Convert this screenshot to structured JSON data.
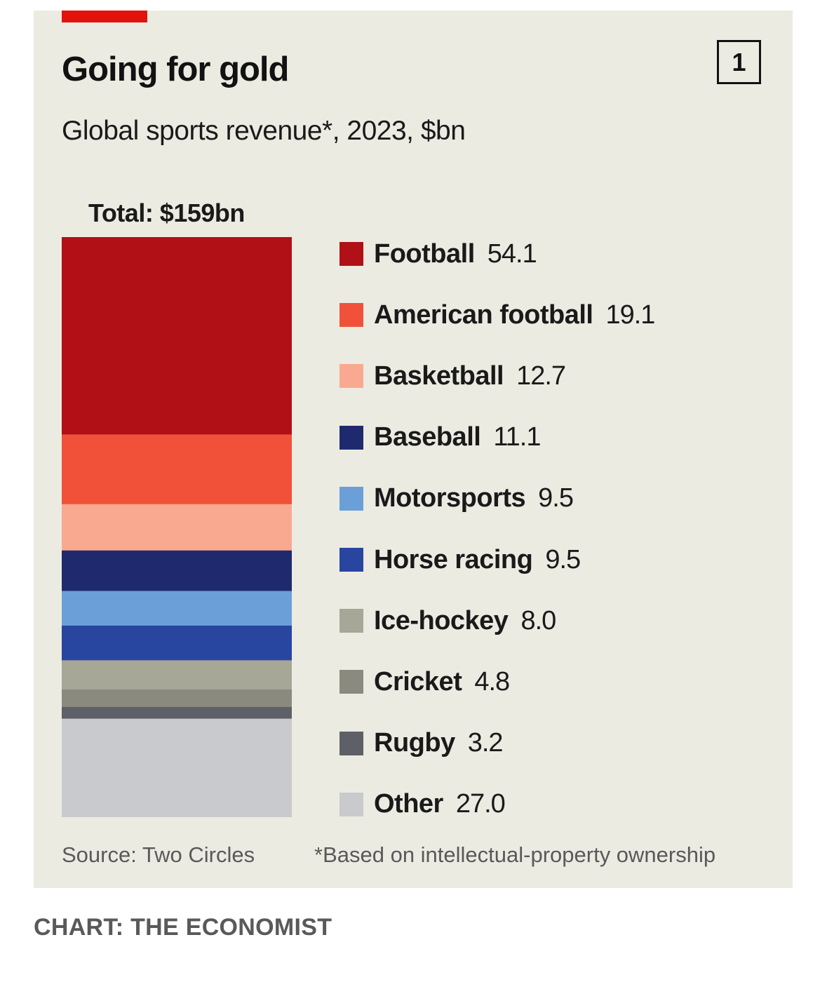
{
  "header": {
    "title": "Going for gold",
    "badge": "1",
    "subtitle": "Global sports revenue*, 2023, $bn"
  },
  "chart_data": {
    "type": "bar",
    "stacked": true,
    "total_label": "Total: $159bn",
    "categories": [
      "Football",
      "American football",
      "Basketball",
      "Baseball",
      "Motorsports",
      "Horse racing",
      "Ice-hockey",
      "Cricket",
      "Rugby",
      "Other"
    ],
    "values": [
      54.1,
      19.1,
      12.7,
      11.1,
      9.5,
      9.5,
      8.0,
      4.8,
      3.2,
      27.0
    ],
    "value_labels": [
      "54.1",
      "19.1",
      "12.7",
      "11.1",
      "9.5",
      "9.5",
      "8.0",
      "4.8",
      "3.2",
      "27.0"
    ],
    "colors": [
      "#b01016",
      "#f05138",
      "#f9a98f",
      "#1f2a6e",
      "#6b9fd8",
      "#2845a0",
      "#a6a797",
      "#8a8b7e",
      "#5e6068",
      "#c9cacd"
    ],
    "total": 159,
    "legend_position": "right"
  },
  "footer": {
    "source": "Source: Two Circles",
    "footnote": "*Based on intellectual-property ownership",
    "credit": "CHART: THE ECONOMIST"
  }
}
